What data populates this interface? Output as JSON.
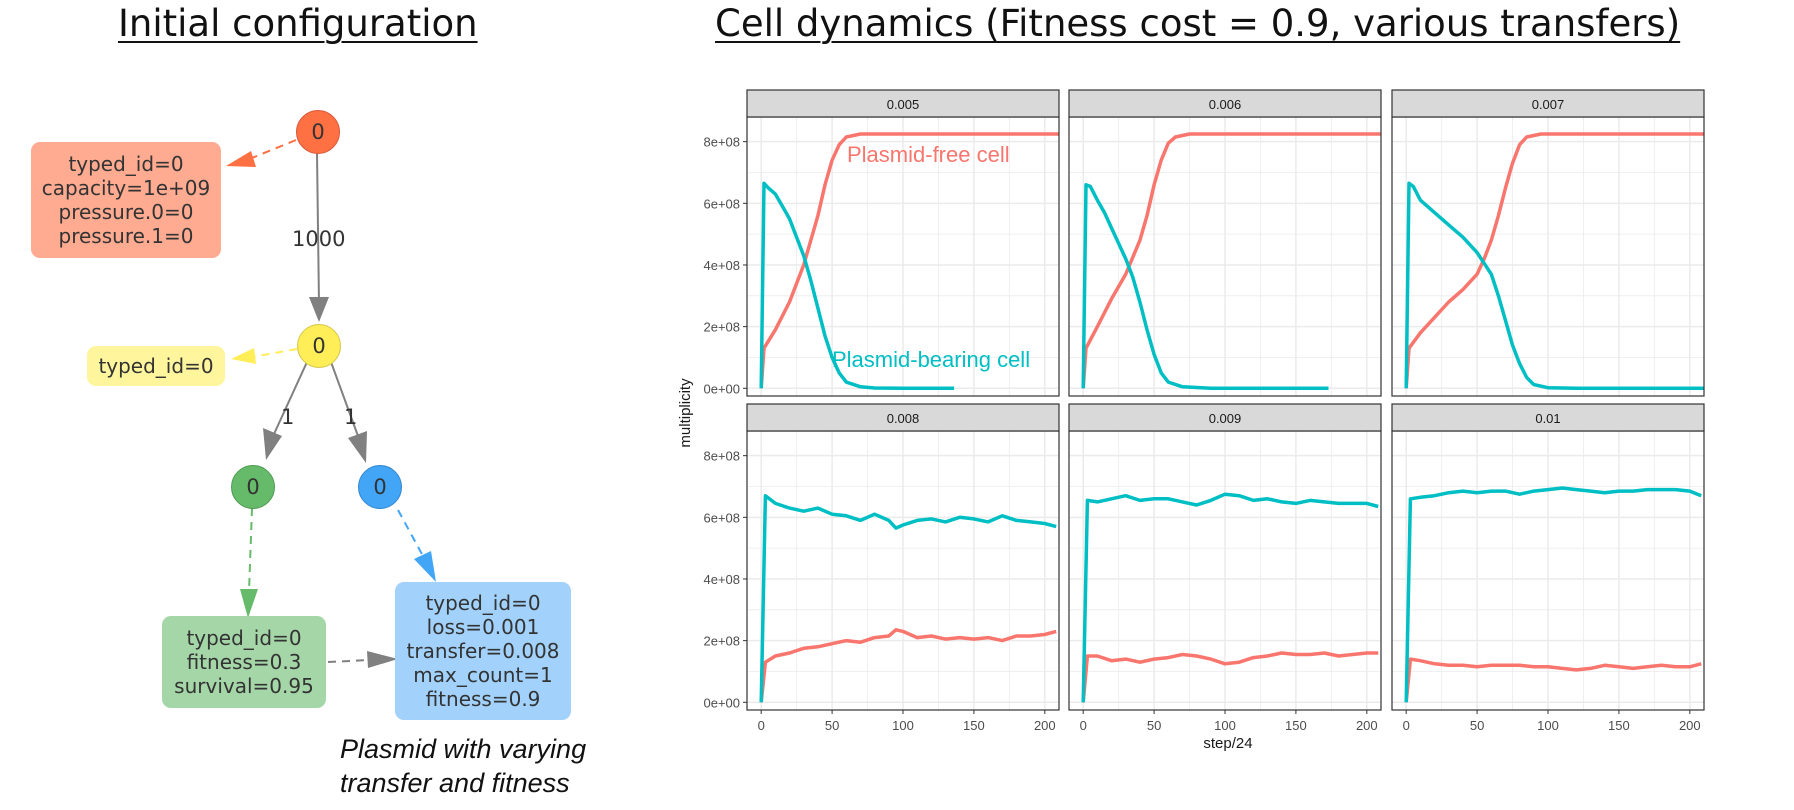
{
  "titles": {
    "left": "Initial configuration",
    "right": "Cell dynamics (Fitness cost = 0.9, various transfers)"
  },
  "diagram": {
    "nodes": {
      "top": {
        "label": "0",
        "color": "#ff7043"
      },
      "yellow": {
        "label": "0",
        "color": "#ffee58"
      },
      "green": {
        "label": "0",
        "color": "#66bb6a"
      },
      "blue": {
        "label": "0",
        "color": "#42a5f5"
      }
    },
    "edges": {
      "top_yellow": "1000",
      "yellow_green": "1",
      "yellow_blue": "1"
    },
    "boxes": {
      "orange": {
        "color": "#ffab91",
        "lines": [
          "typed_id=0",
          "capacity=1e+09",
          "pressure.0=0",
          "pressure.1=0"
        ]
      },
      "yellow": {
        "color": "#fff59d",
        "lines": [
          "typed_id=0"
        ]
      },
      "green": {
        "color": "#a5d6a7",
        "lines": [
          "typed_id=0",
          "fitness=0.3",
          "survival=0.95"
        ]
      },
      "blue": {
        "color": "#a2d2fb",
        "lines": [
          "typed_id=0",
          "loss=0.001",
          "transfer=0.008",
          "max_count=1",
          "fitness=0.9"
        ]
      }
    },
    "caption": [
      "Plasmid with varying",
      "transfer and fitness"
    ]
  },
  "chart_data": {
    "type": "line",
    "facets": [
      "0.005",
      "0.006",
      "0.007",
      "0.008",
      "0.009",
      "0.01"
    ],
    "xlabel": "step/24",
    "ylabel": "multiplicity",
    "xlim": [
      -10,
      210
    ],
    "ylim": [
      -25000000.0,
      880000000.0
    ],
    "x_ticks": [
      0,
      50,
      100,
      150,
      200
    ],
    "y_ticks": [
      0,
      200000000.0,
      400000000.0,
      600000000.0,
      800000000.0
    ],
    "y_tick_labels": [
      "0e+00",
      "2e+08",
      "4e+08",
      "6e+08",
      "8e+08"
    ],
    "grid": true,
    "colors": {
      "free": "#f8766d",
      "bearing": "#00bfc4",
      "strip": "#d9d9d9",
      "grid": "#ebebeb"
    },
    "annotations": {
      "free": "Plasmid-free cell",
      "bearing": "Plasmid-bearing cell"
    },
    "panels": [
      {
        "facet": "0.005",
        "bearing": [
          [
            0,
            0
          ],
          [
            2,
            665000000.0
          ],
          [
            5,
            650000000.0
          ],
          [
            10,
            630000000.0
          ],
          [
            15,
            590000000.0
          ],
          [
            20,
            550000000.0
          ],
          [
            25,
            490000000.0
          ],
          [
            30,
            430000000.0
          ],
          [
            35,
            350000000.0
          ],
          [
            40,
            260000000.0
          ],
          [
            45,
            170000000.0
          ],
          [
            50,
            100000000.0
          ],
          [
            55,
            50000000.0
          ],
          [
            60,
            20000000.0
          ],
          [
            70,
            5000000.0
          ],
          [
            80,
            1000000.0
          ],
          [
            100,
            0
          ],
          [
            136,
            0
          ]
        ],
        "free": [
          [
            0,
            0
          ],
          [
            2,
            130000000.0
          ],
          [
            10,
            190000000.0
          ],
          [
            20,
            280000000.0
          ],
          [
            30,
            400000000.0
          ],
          [
            40,
            560000000.0
          ],
          [
            45,
            660000000.0
          ],
          [
            50,
            740000000.0
          ],
          [
            55,
            790000000.0
          ],
          [
            60,
            815000000.0
          ],
          [
            70,
            825000000.0
          ],
          [
            100,
            825000000.0
          ],
          [
            210,
            825000000.0
          ]
        ]
      },
      {
        "facet": "0.006",
        "bearing": [
          [
            0,
            0
          ],
          [
            2,
            660000000.0
          ],
          [
            5,
            655000000.0
          ],
          [
            10,
            610000000.0
          ],
          [
            15,
            570000000.0
          ],
          [
            20,
            520000000.0
          ],
          [
            25,
            470000000.0
          ],
          [
            30,
            420000000.0
          ],
          [
            35,
            360000000.0
          ],
          [
            40,
            280000000.0
          ],
          [
            45,
            190000000.0
          ],
          [
            50,
            110000000.0
          ],
          [
            55,
            50000000.0
          ],
          [
            60,
            20000000.0
          ],
          [
            70,
            5000000.0
          ],
          [
            90,
            0
          ],
          [
            173,
            0
          ]
        ],
        "free": [
          [
            0,
            0
          ],
          [
            2,
            130000000.0
          ],
          [
            10,
            200000000.0
          ],
          [
            20,
            290000000.0
          ],
          [
            30,
            370000000.0
          ],
          [
            40,
            480000000.0
          ],
          [
            45,
            560000000.0
          ],
          [
            50,
            660000000.0
          ],
          [
            55,
            740000000.0
          ],
          [
            60,
            795000000.0
          ],
          [
            65,
            815000000.0
          ],
          [
            75,
            825000000.0
          ],
          [
            210,
            825000000.0
          ]
        ]
      },
      {
        "facet": "0.007",
        "bearing": [
          [
            0,
            0
          ],
          [
            2,
            665000000.0
          ],
          [
            5,
            655000000.0
          ],
          [
            10,
            610000000.0
          ],
          [
            20,
            570000000.0
          ],
          [
            30,
            530000000.0
          ],
          [
            40,
            490000000.0
          ],
          [
            50,
            440000000.0
          ],
          [
            60,
            370000000.0
          ],
          [
            65,
            300000000.0
          ],
          [
            70,
            220000000.0
          ],
          [
            75,
            140000000.0
          ],
          [
            80,
            80000000.0
          ],
          [
            85,
            35000000.0
          ],
          [
            90,
            12000000.0
          ],
          [
            100,
            2000000.0
          ],
          [
            120,
            0
          ],
          [
            210,
            0
          ]
        ],
        "free": [
          [
            0,
            0
          ],
          [
            2,
            130000000.0
          ],
          [
            10,
            180000000.0
          ],
          [
            20,
            230000000.0
          ],
          [
            30,
            280000000.0
          ],
          [
            40,
            320000000.0
          ],
          [
            50,
            370000000.0
          ],
          [
            55,
            420000000.0
          ],
          [
            60,
            480000000.0
          ],
          [
            65,
            560000000.0
          ],
          [
            70,
            650000000.0
          ],
          [
            75,
            730000000.0
          ],
          [
            80,
            790000000.0
          ],
          [
            85,
            815000000.0
          ],
          [
            95,
            825000000.0
          ],
          [
            210,
            825000000.0
          ]
        ]
      },
      {
        "facet": "0.008",
        "bearing": [
          [
            0,
            0
          ],
          [
            3,
            670000000.0
          ],
          [
            10,
            645000000.0
          ],
          [
            20,
            630000000.0
          ],
          [
            30,
            620000000.0
          ],
          [
            40,
            630000000.0
          ],
          [
            50,
            610000000.0
          ],
          [
            60,
            605000000.0
          ],
          [
            70,
            590000000.0
          ],
          [
            80,
            610000000.0
          ],
          [
            90,
            590000000.0
          ],
          [
            95,
            565000000.0
          ],
          [
            100,
            575000000.0
          ],
          [
            110,
            590000000.0
          ],
          [
            120,
            595000000.0
          ],
          [
            130,
            585000000.0
          ],
          [
            140,
            600000000.0
          ],
          [
            150,
            595000000.0
          ],
          [
            160,
            585000000.0
          ],
          [
            170,
            605000000.0
          ],
          [
            180,
            590000000.0
          ],
          [
            190,
            585000000.0
          ],
          [
            200,
            580000000.0
          ],
          [
            208,
            570000000.0
          ]
        ],
        "free": [
          [
            0,
            0
          ],
          [
            3,
            130000000.0
          ],
          [
            10,
            150000000.0
          ],
          [
            20,
            160000000.0
          ],
          [
            30,
            175000000.0
          ],
          [
            40,
            180000000.0
          ],
          [
            50,
            190000000.0
          ],
          [
            60,
            200000000.0
          ],
          [
            70,
            195000000.0
          ],
          [
            80,
            210000000.0
          ],
          [
            90,
            215000000.0
          ],
          [
            95,
            235000000.0
          ],
          [
            100,
            230000000.0
          ],
          [
            110,
            210000000.0
          ],
          [
            120,
            215000000.0
          ],
          [
            130,
            205000000.0
          ],
          [
            140,
            210000000.0
          ],
          [
            150,
            205000000.0
          ],
          [
            160,
            210000000.0
          ],
          [
            170,
            200000000.0
          ],
          [
            180,
            215000000.0
          ],
          [
            190,
            215000000.0
          ],
          [
            200,
            220000000.0
          ],
          [
            208,
            230000000.0
          ]
        ]
      },
      {
        "facet": "0.009",
        "bearing": [
          [
            0,
            0
          ],
          [
            3,
            655000000.0
          ],
          [
            10,
            650000000.0
          ],
          [
            20,
            660000000.0
          ],
          [
            30,
            670000000.0
          ],
          [
            40,
            655000000.0
          ],
          [
            50,
            660000000.0
          ],
          [
            60,
            660000000.0
          ],
          [
            70,
            650000000.0
          ],
          [
            80,
            640000000.0
          ],
          [
            90,
            655000000.0
          ],
          [
            100,
            675000000.0
          ],
          [
            110,
            670000000.0
          ],
          [
            120,
            655000000.0
          ],
          [
            130,
            660000000.0
          ],
          [
            140,
            650000000.0
          ],
          [
            150,
            645000000.0
          ],
          [
            160,
            655000000.0
          ],
          [
            170,
            650000000.0
          ],
          [
            180,
            645000000.0
          ],
          [
            190,
            645000000.0
          ],
          [
            200,
            645000000.0
          ],
          [
            208,
            635000000.0
          ]
        ],
        "free": [
          [
            0,
            0
          ],
          [
            3,
            150000000.0
          ],
          [
            10,
            150000000.0
          ],
          [
            20,
            135000000.0
          ],
          [
            30,
            140000000.0
          ],
          [
            40,
            130000000.0
          ],
          [
            50,
            140000000.0
          ],
          [
            60,
            145000000.0
          ],
          [
            70,
            155000000.0
          ],
          [
            80,
            150000000.0
          ],
          [
            90,
            140000000.0
          ],
          [
            100,
            125000000.0
          ],
          [
            110,
            130000000.0
          ],
          [
            120,
            145000000.0
          ],
          [
            130,
            150000000.0
          ],
          [
            140,
            160000000.0
          ],
          [
            150,
            155000000.0
          ],
          [
            160,
            155000000.0
          ],
          [
            170,
            160000000.0
          ],
          [
            180,
            150000000.0
          ],
          [
            190,
            155000000.0
          ],
          [
            200,
            160000000.0
          ],
          [
            208,
            160000000.0
          ]
        ]
      },
      {
        "facet": "0.01",
        "bearing": [
          [
            0,
            0
          ],
          [
            3,
            660000000.0
          ],
          [
            10,
            665000000.0
          ],
          [
            20,
            670000000.0
          ],
          [
            30,
            680000000.0
          ],
          [
            40,
            685000000.0
          ],
          [
            50,
            680000000.0
          ],
          [
            60,
            685000000.0
          ],
          [
            70,
            685000000.0
          ],
          [
            80,
            675000000.0
          ],
          [
            90,
            685000000.0
          ],
          [
            100,
            690000000.0
          ],
          [
            110,
            695000000.0
          ],
          [
            120,
            690000000.0
          ],
          [
            130,
            685000000.0
          ],
          [
            140,
            680000000.0
          ],
          [
            150,
            685000000.0
          ],
          [
            160,
            685000000.0
          ],
          [
            170,
            690000000.0
          ],
          [
            180,
            690000000.0
          ],
          [
            190,
            690000000.0
          ],
          [
            200,
            685000000.0
          ],
          [
            208,
            670000000.0
          ]
        ],
        "free": [
          [
            0,
            0
          ],
          [
            3,
            140000000.0
          ],
          [
            10,
            135000000.0
          ],
          [
            20,
            125000000.0
          ],
          [
            30,
            120000000.0
          ],
          [
            40,
            120000000.0
          ],
          [
            50,
            115000000.0
          ],
          [
            60,
            120000000.0
          ],
          [
            70,
            120000000.0
          ],
          [
            80,
            120000000.0
          ],
          [
            90,
            115000000.0
          ],
          [
            100,
            115000000.0
          ],
          [
            110,
            110000000.0
          ],
          [
            120,
            105000000.0
          ],
          [
            130,
            110000000.0
          ],
          [
            140,
            120000000.0
          ],
          [
            150,
            115000000.0
          ],
          [
            160,
            110000000.0
          ],
          [
            170,
            115000000.0
          ],
          [
            180,
            120000000.0
          ],
          [
            190,
            115000000.0
          ],
          [
            200,
            115000000.0
          ],
          [
            208,
            125000000.0
          ]
        ]
      }
    ]
  }
}
